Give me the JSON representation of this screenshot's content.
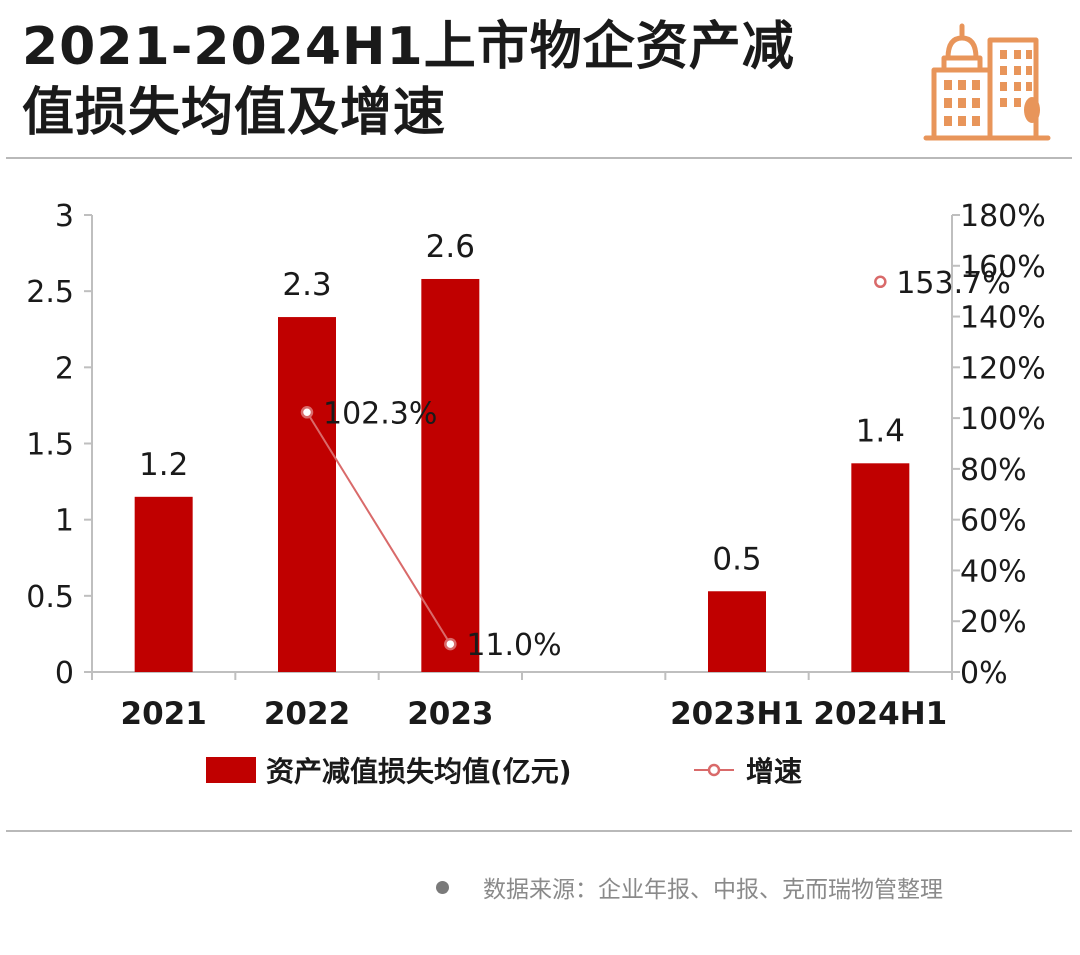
{
  "header": {
    "title_line1": "2021-2024H1上市物企资产减",
    "title_line2": "值损失均值及增速"
  },
  "chart_data": {
    "type": "bar",
    "categories": [
      "2021",
      "2022",
      "2023",
      "",
      "2023H1",
      "2024H1"
    ],
    "series": [
      {
        "name": "资产减值损失均值(亿元)",
        "type": "bar",
        "axis": "left",
        "values": [
          1.15,
          2.33,
          2.58,
          null,
          0.53,
          1.37
        ],
        "labels": [
          "1.2",
          "2.3",
          "2.6",
          null,
          "0.5",
          "1.4"
        ]
      },
      {
        "name": "增速",
        "type": "line",
        "axis": "right",
        "values": [
          null,
          102.3,
          11.0,
          null,
          null,
          153.7
        ],
        "labels": [
          null,
          "102.3%",
          "11.0%",
          null,
          null,
          "153.7%"
        ]
      }
    ],
    "left_axis": {
      "ylim": [
        0,
        3
      ],
      "ticks": [
        "0",
        "0.5",
        "1",
        "1.5",
        "2",
        "2.5",
        "3"
      ]
    },
    "right_axis": {
      "ylim": [
        0,
        180
      ],
      "ticks": [
        "0%",
        "20%",
        "40%",
        "60%",
        "80%",
        "100%",
        "120%",
        "140%",
        "160%",
        "180%"
      ]
    },
    "legend": [
      "资产减值损失均值(亿元)",
      "增速"
    ],
    "colors": {
      "bar": "#c00000",
      "line": "#d96a6a",
      "axis": "#bfbfbf",
      "text": "#1a1a1a"
    }
  },
  "footer": {
    "source": "数据来源：企业年报、中报、克而瑞物管整理"
  }
}
